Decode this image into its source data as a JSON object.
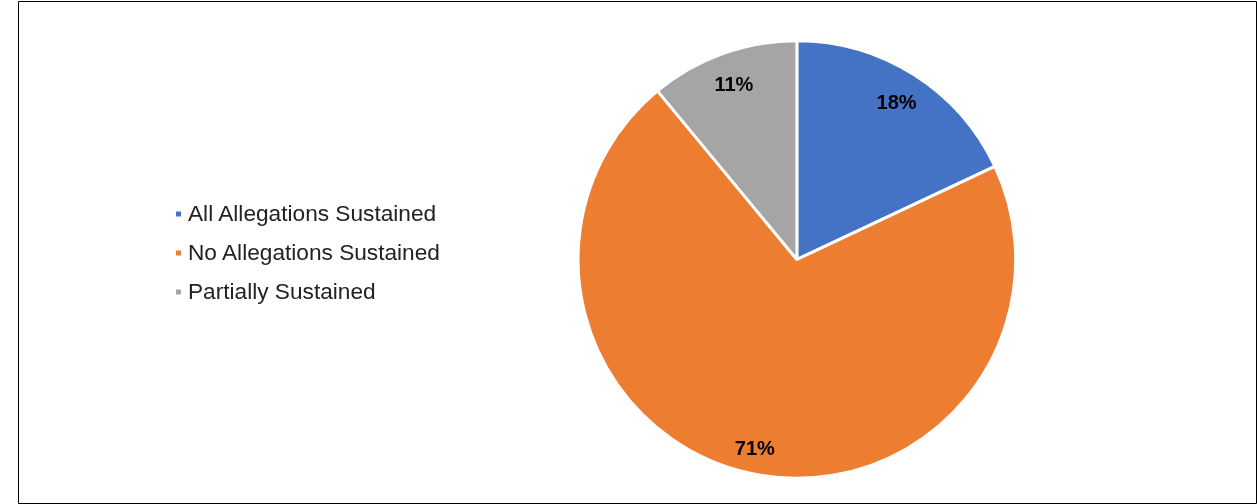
{
  "chart_data": {
    "type": "pie",
    "categories": [
      "All Allegations Sustained",
      "No Allegations Sustained",
      "Partially Sustained"
    ],
    "values": [
      18,
      71,
      11
    ],
    "colors": [
      "#4472c4",
      "#ed7d31",
      "#a5a5a5"
    ],
    "value_labels": [
      "18%",
      "71%",
      "11%"
    ],
    "legend": "left"
  }
}
